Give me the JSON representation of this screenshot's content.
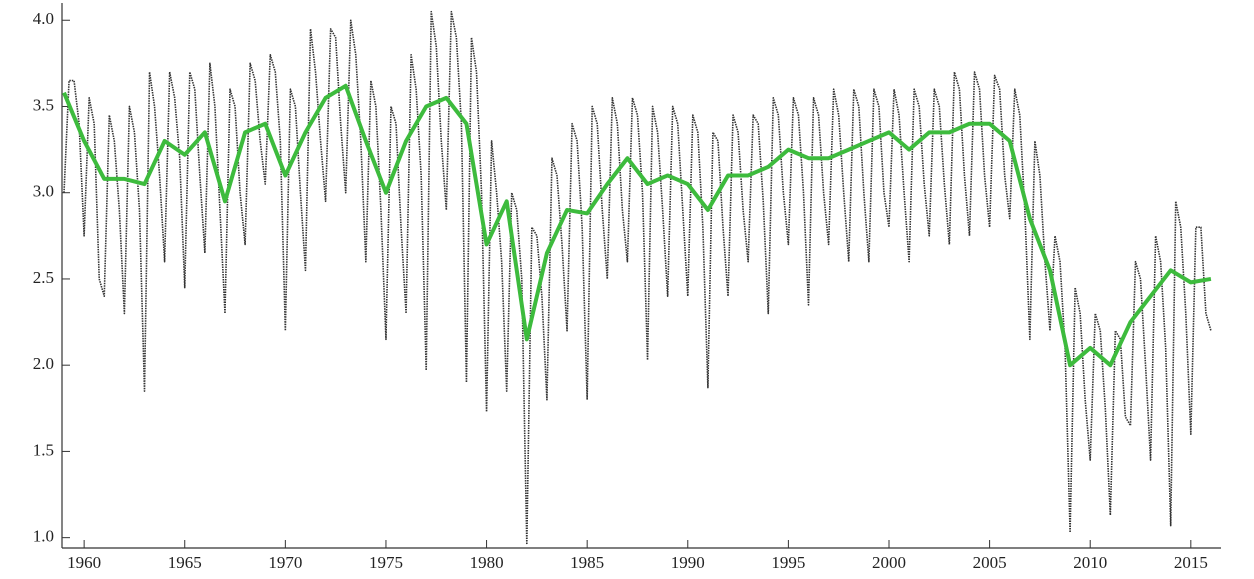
{
  "chart_data": {
    "type": "line",
    "xlim": [
      1958.9,
      2016.5
    ],
    "ylim": [
      0.94,
      4.1
    ],
    "xticks": [
      1960,
      1965,
      1970,
      1975,
      1980,
      1985,
      1990,
      1995,
      2000,
      2005,
      2010,
      2015
    ],
    "yticks": [
      {
        "value": 1,
        "label": "1.0"
      },
      {
        "value": 1.5,
        "label": "1.5"
      },
      {
        "value": 2,
        "label": "2.0"
      },
      {
        "value": 2.5,
        "label": "2.5"
      },
      {
        "value": 3,
        "label": "3.0"
      },
      {
        "value": 3.5,
        "label": "3.5"
      },
      {
        "value": 4,
        "label": "4.0"
      }
    ],
    "series": [
      {
        "color": "#333333",
        "style": "dotted",
        "x": [
          1959,
          1959.25,
          1959.5,
          1959.75,
          1960,
          1960.25,
          1960.5,
          1960.75,
          1961,
          1961.25,
          1961.5,
          1961.75,
          1962,
          1962.25,
          1962.5,
          1962.75,
          1963,
          1963.25,
          1963.5,
          1963.75,
          1964,
          1964.25,
          1964.5,
          1964.75,
          1965,
          1965.25,
          1965.5,
          1965.75,
          1966,
          1966.25,
          1966.5,
          1966.75,
          1967,
          1967.25,
          1967.5,
          1967.75,
          1968,
          1968.25,
          1968.5,
          1968.75,
          1969,
          1969.25,
          1969.5,
          1969.75,
          1970,
          1970.25,
          1970.5,
          1970.75,
          1971,
          1971.25,
          1971.5,
          1971.75,
          1972,
          1972.25,
          1972.5,
          1972.75,
          1973,
          1973.25,
          1973.5,
          1973.75,
          1974,
          1974.25,
          1974.5,
          1974.75,
          1975,
          1975.25,
          1975.5,
          1975.75,
          1976,
          1976.25,
          1976.5,
          1976.75,
          1977,
          1977.25,
          1977.5,
          1977.75,
          1978,
          1978.25,
          1978.5,
          1978.75,
          1979,
          1979.25,
          1979.5,
          1979.75,
          1980,
          1980.25,
          1980.5,
          1980.75,
          1981,
          1981.25,
          1981.5,
          1981.75,
          1982,
          1982.25,
          1982.5,
          1982.75,
          1983,
          1983.25,
          1983.5,
          1983.75,
          1984,
          1984.25,
          1984.5,
          1984.75,
          1985,
          1985.25,
          1985.5,
          1985.75,
          1986,
          1986.25,
          1986.5,
          1986.75,
          1987,
          1987.25,
          1987.5,
          1987.75,
          1988,
          1988.25,
          1988.5,
          1988.75,
          1989,
          1989.25,
          1989.5,
          1989.75,
          1990,
          1990.25,
          1990.5,
          1990.75,
          1991,
          1991.25,
          1991.5,
          1991.75,
          1992,
          1992.25,
          1992.5,
          1992.75,
          1993,
          1993.25,
          1993.5,
          1993.75,
          1994,
          1994.25,
          1994.5,
          1994.75,
          1995,
          1995.25,
          1995.5,
          1995.75,
          1996,
          1996.25,
          1996.5,
          1996.75,
          1997,
          1997.25,
          1997.5,
          1997.75,
          1998,
          1998.25,
          1998.5,
          1998.75,
          1999,
          1999.25,
          1999.5,
          1999.75,
          2000,
          2000.25,
          2000.5,
          2000.75,
          2001,
          2001.25,
          2001.5,
          2001.75,
          2002,
          2002.25,
          2002.5,
          2002.75,
          2003,
          2003.25,
          2003.5,
          2003.75,
          2004,
          2004.25,
          2004.5,
          2004.75,
          2005,
          2005.25,
          2005.5,
          2005.75,
          2006,
          2006.25,
          2006.5,
          2006.75,
          2007,
          2007.25,
          2007.5,
          2007.75,
          2008,
          2008.25,
          2008.5,
          2008.75,
          2009,
          2009.25,
          2009.5,
          2009.75,
          2010,
          2010.25,
          2010.5,
          2010.75,
          2011,
          2011.25,
          2011.5,
          2011.75,
          2012,
          2012.25,
          2012.5,
          2012.75,
          2013,
          2013.25,
          2013.5,
          2013.75,
          2014,
          2014.25,
          2014.5,
          2014.75,
          2015,
          2015.25,
          2015.5,
          2015.75,
          2016
        ],
        "values": [
          3.0,
          3.65,
          3.65,
          3.4,
          2.75,
          3.55,
          3.4,
          2.5,
          2.4,
          3.45,
          3.3,
          2.9,
          2.3,
          3.5,
          3.35,
          2.9,
          1.85,
          3.7,
          3.5,
          3.1,
          2.6,
          3.7,
          3.55,
          3.2,
          2.45,
          3.7,
          3.6,
          3.1,
          2.65,
          3.75,
          3.5,
          2.9,
          2.3,
          3.6,
          3.5,
          3.0,
          2.7,
          3.75,
          3.65,
          3.3,
          3.05,
          3.8,
          3.7,
          3.3,
          2.2,
          3.6,
          3.5,
          3.0,
          2.55,
          3.95,
          3.7,
          3.3,
          2.95,
          3.95,
          3.9,
          3.4,
          3.0,
          4.0,
          3.8,
          3.3,
          2.6,
          3.65,
          3.5,
          2.9,
          2.15,
          3.5,
          3.4,
          2.8,
          2.3,
          3.8,
          3.6,
          3.1,
          1.97,
          4.05,
          3.85,
          3.3,
          2.9,
          4.05,
          3.9,
          3.4,
          1.9,
          3.9,
          3.7,
          3.0,
          1.73,
          3.3,
          3.0,
          2.6,
          1.85,
          3.0,
          2.9,
          2.5,
          0.96,
          2.8,
          2.75,
          2.4,
          1.8,
          3.2,
          3.1,
          2.7,
          2.2,
          3.4,
          3.3,
          2.8,
          1.8,
          3.5,
          3.4,
          2.9,
          2.5,
          3.55,
          3.4,
          2.9,
          2.6,
          3.55,
          3.45,
          3.0,
          2.03,
          3.5,
          3.35,
          2.9,
          2.4,
          3.5,
          3.4,
          2.9,
          2.4,
          3.45,
          3.35,
          2.8,
          1.87,
          3.35,
          3.3,
          2.8,
          2.4,
          3.45,
          3.35,
          2.9,
          2.6,
          3.45,
          3.4,
          2.95,
          2.3,
          3.55,
          3.45,
          3.0,
          2.7,
          3.55,
          3.45,
          3.0,
          2.35,
          3.55,
          3.45,
          3.0,
          2.7,
          3.6,
          3.45,
          3.0,
          2.6,
          3.6,
          3.5,
          3.0,
          2.6,
          3.6,
          3.5,
          3.0,
          2.8,
          3.6,
          3.45,
          3.0,
          2.6,
          3.6,
          3.5,
          3.05,
          2.75,
          3.6,
          3.5,
          3.05,
          2.7,
          3.7,
          3.6,
          3.1,
          2.75,
          3.7,
          3.6,
          3.1,
          2.8,
          3.68,
          3.6,
          3.1,
          2.85,
          3.6,
          3.45,
          2.9,
          2.15,
          3.3,
          3.1,
          2.6,
          2.2,
          2.75,
          2.6,
          2.1,
          1.03,
          2.45,
          2.3,
          1.8,
          1.45,
          2.3,
          2.2,
          1.75,
          1.13,
          2.2,
          2.15,
          1.7,
          1.65,
          2.6,
          2.5,
          2.0,
          1.45,
          2.75,
          2.6,
          2.1,
          1.07,
          2.95,
          2.8,
          2.3,
          1.6,
          2.8,
          2.8,
          2.3,
          2.2
        ]
      },
      {
        "color": "#3dbb3d",
        "style": "solid",
        "x": [
          1959,
          1960,
          1961,
          1962,
          1963,
          1964,
          1965,
          1966,
          1967,
          1968,
          1969,
          1970,
          1971,
          1972,
          1973,
          1974,
          1975,
          1976,
          1977,
          1978,
          1979,
          1980,
          1981,
          1982,
          1983,
          1984,
          1985,
          1986,
          1987,
          1988,
          1989,
          1990,
          1991,
          1992,
          1993,
          1994,
          1995,
          1996,
          1997,
          1998,
          1999,
          2000,
          2001,
          2002,
          2003,
          2004,
          2005,
          2006,
          2007,
          2008,
          2009,
          2010,
          2011,
          2012,
          2013,
          2014,
          2015,
          2016
        ],
        "values": [
          3.58,
          3.3,
          3.08,
          3.08,
          3.05,
          3.3,
          3.22,
          3.35,
          2.95,
          3.35,
          3.4,
          3.1,
          3.35,
          3.55,
          3.62,
          3.3,
          3.0,
          3.3,
          3.5,
          3.55,
          3.4,
          2.7,
          2.95,
          2.15,
          2.65,
          2.9,
          2.88,
          3.05,
          3.2,
          3.05,
          3.1,
          3.05,
          2.9,
          3.1,
          3.1,
          3.15,
          3.25,
          3.2,
          3.2,
          3.25,
          3.3,
          3.35,
          3.25,
          3.35,
          3.35,
          3.4,
          3.4,
          3.3,
          2.85,
          2.55,
          2.0,
          2.1,
          2.0,
          2.25,
          2.4,
          2.55,
          2.48,
          2.5
        ]
      }
    ]
  }
}
